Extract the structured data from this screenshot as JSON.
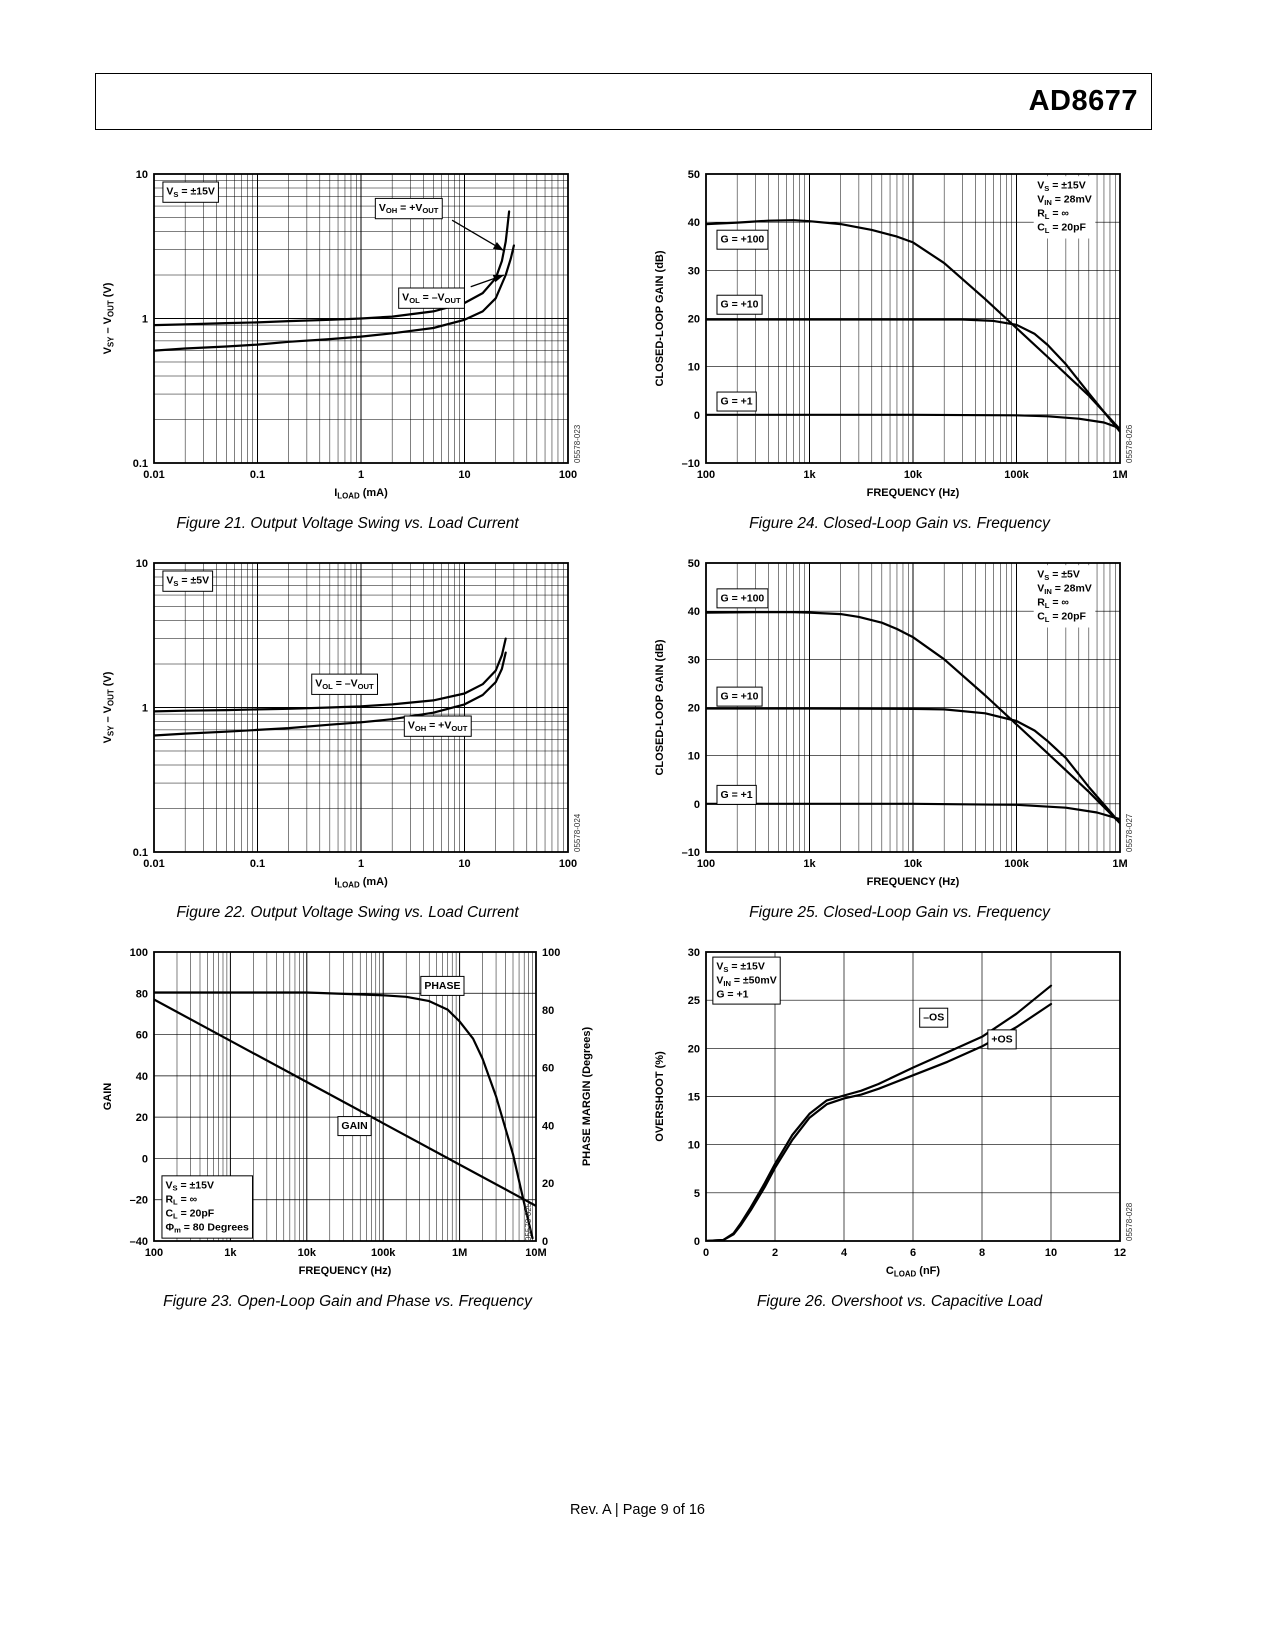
{
  "header": {
    "part_number": "AD8677"
  },
  "footer": {
    "text": "Rev. A | Page 9 of 16"
  },
  "chart_data": [
    {
      "caption": "Figure 21. Output Voltage Swing vs. Load Current",
      "watermark": "05578-023",
      "type": "line",
      "x": {
        "scale": "log",
        "min": 0.01,
        "max": 100,
        "ticks": [
          0.01,
          0.1,
          1,
          10,
          100
        ],
        "tick_labels": [
          "0.01",
          "0.1",
          "1",
          "10",
          "100"
        ],
        "label": "I_{LOAD} (mA)"
      },
      "y": {
        "scale": "log",
        "min": 0.1,
        "max": 10,
        "ticks": [
          0.1,
          1,
          10
        ],
        "tick_labels": [
          "0.1",
          "1",
          "10"
        ],
        "label": "V_{SY} – V_{OUT} (V)"
      },
      "series": [
        {
          "name": "VOH = +VOUT",
          "x": [
            0.01,
            0.02,
            0.05,
            0.1,
            0.2,
            0.5,
            1,
            2,
            5,
            10,
            15,
            20,
            23,
            25,
            26,
            27
          ],
          "y": [
            0.9,
            0.91,
            0.93,
            0.94,
            0.96,
            0.98,
            1.0,
            1.03,
            1.12,
            1.28,
            1.5,
            1.9,
            2.5,
            3.4,
            4.3,
            5.5
          ]
        },
        {
          "name": "VOL = -VOUT",
          "x": [
            0.01,
            0.02,
            0.05,
            0.1,
            0.2,
            0.5,
            1,
            2,
            5,
            10,
            15,
            20,
            25,
            28,
            30
          ],
          "y": [
            0.6,
            0.62,
            0.64,
            0.66,
            0.69,
            0.72,
            0.75,
            0.79,
            0.86,
            0.98,
            1.12,
            1.38,
            2.0,
            2.6,
            3.2
          ]
        }
      ],
      "annotations": [
        {
          "lines": [
            "V_{S} = ±15V"
          ],
          "x": 0.03,
          "y": 0.04,
          "anchor": "start",
          "valign": "top",
          "boxed": true
        },
        {
          "lines": [
            "V_{OH} = +V_{OUT}"
          ],
          "x": 0.615,
          "y": 0.115,
          "anchor": "middle",
          "valign": "middle",
          "boxed": true
        },
        {
          "lines": [
            "V_{OL} = –V_{OUT}"
          ],
          "x": 0.67,
          "y": 0.425,
          "anchor": "middle",
          "valign": "middle",
          "boxed": true
        }
      ],
      "arrows": [
        {
          "from": [
            0.72,
            0.16
          ],
          "to": [
            0.845,
            0.265
          ]
        },
        {
          "from": [
            0.765,
            0.39
          ],
          "to": [
            0.845,
            0.35
          ]
        }
      ]
    },
    {
      "caption": "Figure 24. Closed-Loop Gain vs. Frequency",
      "watermark": "05578-026",
      "type": "line",
      "x": {
        "scale": "log",
        "min": 100,
        "max": 1000000,
        "ticks": [
          100,
          1000,
          10000,
          100000,
          1000000
        ],
        "tick_labels": [
          "100",
          "1k",
          "10k",
          "100k",
          "1M"
        ],
        "label": "FREQUENCY (Hz)"
      },
      "y": {
        "scale": "linear",
        "min": -10,
        "max": 50,
        "ticks": [
          -10,
          0,
          10,
          20,
          30,
          40,
          50
        ],
        "tick_labels": [
          "–10",
          "0",
          "10",
          "20",
          "30",
          "40",
          "50"
        ],
        "label": "CLOSED-LOOP GAIN (dB)"
      },
      "series": [
        {
          "name": "G = +100",
          "x": [
            100,
            200,
            400,
            700,
            1000,
            2000,
            4000,
            7000,
            10000,
            20000,
            50000,
            100000,
            200000,
            500000,
            1000000
          ],
          "y": [
            39.6,
            39.9,
            40.3,
            40.4,
            40.2,
            39.6,
            38.4,
            37.0,
            35.8,
            31.5,
            24.0,
            18.0,
            12.0,
            4.0,
            -3.0
          ]
        },
        {
          "name": "G = +10",
          "x": [
            100,
            1000,
            10000,
            30000,
            60000,
            100000,
            150000,
            200000,
            300000,
            500000,
            1000000
          ],
          "y": [
            19.8,
            19.8,
            19.8,
            19.8,
            19.5,
            18.7,
            16.8,
            14.5,
            10.5,
            4.5,
            -3.5
          ]
        },
        {
          "name": "G = +1",
          "x": [
            100,
            1000,
            10000,
            100000,
            200000,
            400000,
            700000,
            1000000
          ],
          "y": [
            0,
            0,
            0,
            -0.1,
            -0.3,
            -0.8,
            -1.6,
            -2.8
          ]
        }
      ],
      "annotations": [
        {
          "lines": [
            "V_{S} = ±15V",
            "V_{IN} = 28mV",
            "R_{L} = ∞",
            "C_{L} = 20pF"
          ],
          "x": 0.8,
          "y": 0.02,
          "anchor": "start",
          "valign": "top",
          "boxed": false
        },
        {
          "lines": [
            "G = +100"
          ],
          "x": 0.035,
          "y": 0.225,
          "anchor": "start",
          "valign": "middle",
          "boxed": true
        },
        {
          "lines": [
            "G = +10"
          ],
          "x": 0.035,
          "y": 0.45,
          "anchor": "start",
          "valign": "middle",
          "boxed": true
        },
        {
          "lines": [
            "G = +1"
          ],
          "x": 0.035,
          "y": 0.785,
          "anchor": "start",
          "valign": "middle",
          "boxed": true
        }
      ]
    },
    {
      "caption": "Figure 22. Output Voltage Swing vs. Load Current",
      "watermark": "05578-024",
      "type": "line",
      "x": {
        "scale": "log",
        "min": 0.01,
        "max": 100,
        "ticks": [
          0.01,
          0.1,
          1,
          10,
          100
        ],
        "tick_labels": [
          "0.01",
          "0.1",
          "1",
          "10",
          "100"
        ],
        "label": "I_{LOAD} (mA)"
      },
      "y": {
        "scale": "log",
        "min": 0.1,
        "max": 10,
        "ticks": [
          0.1,
          1,
          10
        ],
        "tick_labels": [
          "0.1",
          "1",
          "10"
        ],
        "label": "V_{SY} – V_{OUT} (V)"
      },
      "series": [
        {
          "name": "VOL = -VOUT",
          "x": [
            0.01,
            0.02,
            0.05,
            0.1,
            0.2,
            0.5,
            1,
            2,
            5,
            10,
            15,
            20,
            23,
            25
          ],
          "y": [
            0.94,
            0.95,
            0.96,
            0.97,
            0.98,
            1.0,
            1.02,
            1.05,
            1.12,
            1.25,
            1.45,
            1.8,
            2.3,
            3.0
          ]
        },
        {
          "name": "VOH = +VOUT",
          "x": [
            0.01,
            0.02,
            0.05,
            0.1,
            0.2,
            0.5,
            1,
            2,
            5,
            10,
            15,
            20,
            23,
            25
          ],
          "y": [
            0.64,
            0.66,
            0.68,
            0.7,
            0.72,
            0.76,
            0.79,
            0.83,
            0.92,
            1.05,
            1.22,
            1.5,
            1.85,
            2.4
          ]
        }
      ],
      "annotations": [
        {
          "lines": [
            "V_{S} = ±5V"
          ],
          "x": 0.03,
          "y": 0.04,
          "anchor": "start",
          "valign": "top",
          "boxed": true
        },
        {
          "lines": [
            "V_{OL} = –V_{OUT}"
          ],
          "x": 0.46,
          "y": 0.415,
          "anchor": "middle",
          "valign": "middle",
          "boxed": true
        },
        {
          "lines": [
            "V_{OH} = +V_{OUT}"
          ],
          "x": 0.685,
          "y": 0.56,
          "anchor": "middle",
          "valign": "middle",
          "boxed": true
        }
      ]
    },
    {
      "caption": "Figure 25. Closed-Loop Gain vs. Frequency",
      "watermark": "05578-027",
      "type": "line",
      "x": {
        "scale": "log",
        "min": 100,
        "max": 1000000,
        "ticks": [
          100,
          1000,
          10000,
          100000,
          1000000
        ],
        "tick_labels": [
          "100",
          "1k",
          "10k",
          "100k",
          "1M"
        ],
        "label": "FREQUENCY (Hz)"
      },
      "y": {
        "scale": "linear",
        "min": -10,
        "max": 50,
        "ticks": [
          -10,
          0,
          10,
          20,
          30,
          40,
          50
        ],
        "tick_labels": [
          "–10",
          "0",
          "10",
          "20",
          "30",
          "40",
          "50"
        ],
        "label": "CLOSED-LOOP GAIN (dB)"
      },
      "series": [
        {
          "name": "G = +100",
          "x": [
            100,
            300,
            700,
            1000,
            2000,
            3000,
            5000,
            7000,
            10000,
            20000,
            50000,
            100000,
            200000,
            500000,
            1000000
          ],
          "y": [
            39.7,
            39.8,
            39.8,
            39.7,
            39.4,
            38.8,
            37.6,
            36.3,
            34.6,
            30.0,
            22.5,
            16.5,
            10.5,
            2.5,
            -4.0
          ]
        },
        {
          "name": "G = +10",
          "x": [
            100,
            1000,
            10000,
            20000,
            50000,
            100000,
            150000,
            200000,
            300000,
            500000,
            1000000
          ],
          "y": [
            19.8,
            19.8,
            19.7,
            19.6,
            18.8,
            17.2,
            15.2,
            13.0,
            9.5,
            3.5,
            -4.0
          ]
        },
        {
          "name": "G = +1",
          "x": [
            100,
            1000,
            10000,
            100000,
            300000,
            600000,
            1000000
          ],
          "y": [
            0,
            0,
            0,
            -0.2,
            -0.8,
            -1.8,
            -3.2
          ]
        }
      ],
      "annotations": [
        {
          "lines": [
            "V_{S} = ±5V",
            "V_{IN} = 28mV",
            "R_{L} = ∞",
            "C_{L} = 20pF"
          ],
          "x": 0.8,
          "y": 0.02,
          "anchor": "start",
          "valign": "top",
          "boxed": false
        },
        {
          "lines": [
            "G = +100"
          ],
          "x": 0.035,
          "y": 0.12,
          "anchor": "start",
          "valign": "middle",
          "boxed": true
        },
        {
          "lines": [
            "G = +10"
          ],
          "x": 0.035,
          "y": 0.46,
          "anchor": "start",
          "valign": "middle",
          "boxed": true
        },
        {
          "lines": [
            "G = +1"
          ],
          "x": 0.035,
          "y": 0.8,
          "anchor": "start",
          "valign": "middle",
          "boxed": true
        }
      ]
    },
    {
      "caption": "Figure 23. Open-Loop Gain and Phase vs. Frequency",
      "watermark": "05578-025",
      "type": "line",
      "x": {
        "scale": "log",
        "min": 100,
        "max": 10000000,
        "ticks": [
          100,
          1000,
          10000,
          100000,
          1000000,
          10000000
        ],
        "tick_labels": [
          "100",
          "1k",
          "10k",
          "100k",
          "1M",
          "10M"
        ],
        "label": "FREQUENCY (Hz)"
      },
      "y": {
        "scale": "linear",
        "min": -40,
        "max": 100,
        "ticks": [
          -40,
          -20,
          0,
          20,
          40,
          60,
          80,
          100
        ],
        "tick_labels": [
          "–40",
          "–20",
          "0",
          "20",
          "40",
          "60",
          "80",
          "100"
        ],
        "label": "GAIN"
      },
      "y2": {
        "scale": "linear",
        "min": 0,
        "max": 100,
        "ticks": [
          0,
          20,
          40,
          60,
          80,
          100
        ],
        "tick_labels": [
          "0",
          "20",
          "40",
          "60",
          "80",
          "100"
        ],
        "label": "PHASE MARGIN (Degrees)"
      },
      "series": [
        {
          "name": "GAIN",
          "x": [
            100,
            1000,
            10000,
            100000,
            1000000,
            10000000
          ],
          "y": [
            77,
            57,
            37,
            17,
            -3,
            -23
          ]
        },
        {
          "name": "PHASE",
          "axis": "y2",
          "x": [
            100,
            1000,
            10000,
            100000,
            200000,
            400000,
            700000,
            1000000,
            1500000,
            2000000,
            3000000,
            5000000,
            7000000,
            9000000
          ],
          "y": [
            86,
            86,
            86,
            85,
            84.5,
            83,
            80,
            76,
            70,
            63,
            50,
            30,
            13,
            1
          ]
        }
      ],
      "annotations": [
        {
          "lines": [
            "PHASE"
          ],
          "x": 0.755,
          "y": 0.115,
          "anchor": "middle",
          "valign": "middle",
          "boxed": true
        },
        {
          "lines": [
            "GAIN"
          ],
          "x": 0.525,
          "y": 0.6,
          "anchor": "middle",
          "valign": "middle",
          "boxed": true
        },
        {
          "lines": [
            "V_{S} = ±15V",
            "R_{L} = ∞",
            "C_{L} = 20pF",
            "Φ_{m} = 80 Degrees"
          ],
          "x": 0.03,
          "y": 0.97,
          "anchor": "start",
          "valign": "bottom",
          "boxed": true
        }
      ]
    },
    {
      "caption": "Figure 26. Overshoot vs. Capacitive Load",
      "watermark": "05578-028",
      "type": "line",
      "x": {
        "scale": "linear",
        "min": 0,
        "max": 12,
        "ticks": [
          0,
          2,
          4,
          6,
          8,
          10,
          12
        ],
        "tick_labels": [
          "0",
          "2",
          "4",
          "6",
          "8",
          "10",
          "12"
        ],
        "label": "C_{LOAD} (nF)"
      },
      "y": {
        "scale": "linear",
        "min": 0,
        "max": 30,
        "ticks": [
          0,
          5,
          10,
          15,
          20,
          25,
          30
        ],
        "tick_labels": [
          "0",
          "5",
          "10",
          "15",
          "20",
          "25",
          "30"
        ],
        "label": "OVERSHOOT (%)"
      },
      "series": [
        {
          "name": "-OS",
          "x": [
            0,
            0.5,
            0.8,
            1,
            1.3,
            1.7,
            2,
            2.5,
            3,
            3.5,
            4,
            4.5,
            5,
            6,
            7,
            8,
            9,
            10
          ],
          "y": [
            0,
            0.1,
            0.8,
            1.8,
            3.5,
            6,
            8,
            11,
            13.2,
            14.6,
            15.1,
            15.6,
            16.3,
            18,
            19.6,
            21.2,
            23.6,
            26.5
          ]
        },
        {
          "name": "+OS",
          "x": [
            0,
            0.5,
            0.8,
            1,
            1.3,
            1.7,
            2,
            2.5,
            3,
            3.5,
            4,
            4.5,
            5,
            6,
            7,
            8,
            9,
            10
          ],
          "y": [
            0,
            0.1,
            0.7,
            1.6,
            3.2,
            5.6,
            7.6,
            10.5,
            12.8,
            14.2,
            14.8,
            15.2,
            15.8,
            17.2,
            18.6,
            20.2,
            22.2,
            24.6
          ]
        }
      ],
      "annotations": [
        {
          "lines": [
            "V_{S} = ±15V",
            "V_{IN} = ±50mV",
            "G = +1"
          ],
          "x": 0.025,
          "y": 0.03,
          "anchor": "start",
          "valign": "top",
          "boxed": true
        },
        {
          "lines": [
            "–OS"
          ],
          "x": 0.55,
          "y": 0.225,
          "anchor": "middle",
          "valign": "middle",
          "boxed": true
        },
        {
          "lines": [
            "+OS"
          ],
          "x": 0.715,
          "y": 0.3,
          "anchor": "middle",
          "valign": "middle",
          "boxed": true
        }
      ]
    }
  ]
}
